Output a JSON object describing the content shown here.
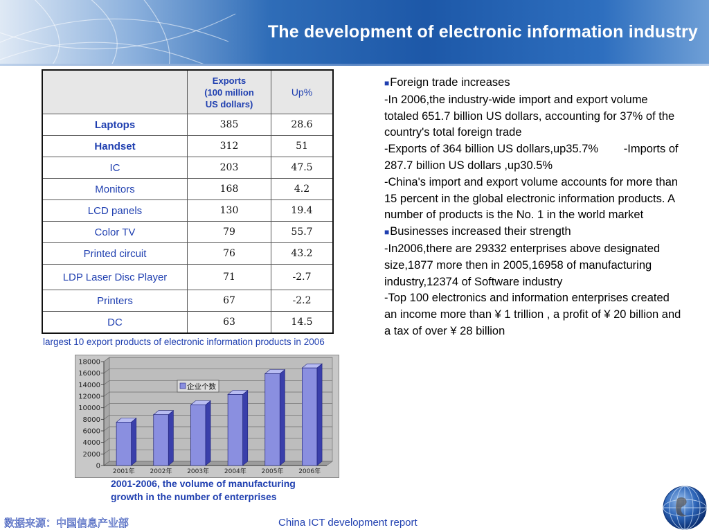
{
  "slide": {
    "title": "The development of electronic information industry"
  },
  "table": {
    "header_exports_lines": [
      "Exports",
      "(100 million",
      "US dollars)"
    ],
    "header_up": "Up%",
    "rows": [
      {
        "product": "Laptops",
        "exports": "385",
        "up": "28.6",
        "bold": true
      },
      {
        "product": "Handset",
        "exports": "312",
        "up": "51",
        "bold": true
      },
      {
        "product": "IC",
        "exports": "203",
        "up": "47.5",
        "bold": false
      },
      {
        "product": "Monitors",
        "exports": "168",
        "up": "4.2",
        "bold": false
      },
      {
        "product": "LCD panels",
        "exports": "130",
        "up": "19.4",
        "bold": false
      },
      {
        "product": "Color TV",
        "exports": "79",
        "up": "55.7",
        "bold": false
      },
      {
        "product": "Printed circuit",
        "exports": "76",
        "up": "43.2",
        "bold": false
      },
      {
        "product": "LDP Laser Disc Player",
        "exports": "71",
        "up": "-2.7",
        "bold": false
      },
      {
        "product": "Printers",
        "exports": "67",
        "up": "-2.2",
        "bold": false
      },
      {
        "product": "DC",
        "exports": "63",
        "up": "14.5",
        "bold": false
      }
    ],
    "caption": "largest 10 export products of electronic information products in 2006"
  },
  "text": {
    "heading1": "Foreign trade increases",
    "para1": "-In 2006,the industry-wide import and export volume totaled 651.7 billion US dollars, accounting for 37% of the country's total foreign trade",
    "para2": "-Exports of 364 billion US dollars,up35.7%        -Imports of 287.7 billion US dollars ,up30.5%",
    "para3": "-China's import and export volume accounts for more than 15 percent in the global electronic information products. A number of products is the No. 1 in the world market",
    "heading2": "Businesses increased their strength",
    "para4": "-In2006,there are 29332 enterprises above designated size,1877 more then in 2005,16958 of manufacturing industry,12374 of Software industry",
    "para5": "-Top 100 electronics and information enterprises created an income more than ¥ 1 trillion , a profit of ¥ 20 billion and a tax of over  ¥ 28 billion"
  },
  "chart_data": {
    "type": "bar",
    "categories": [
      "2001年",
      "2002年",
      "2003年",
      "2004年",
      "2005年",
      "2006年"
    ],
    "series": [
      {
        "name": "企业个数",
        "values": [
          7500,
          8800,
          10500,
          12300,
          15900,
          16900
        ],
        "color": "#8a8fe0"
      }
    ],
    "yticks": [
      "0",
      "2000",
      "4000",
      "6000",
      "8000",
      "10000",
      "12000",
      "14000",
      "16000",
      "18000"
    ],
    "ylim": [
      0,
      18000
    ],
    "grid": true,
    "legend": "top-center",
    "caption_lines": [
      "2001-2006, the volume of manufacturing",
      "growth in the number of enterprises"
    ]
  },
  "footer": {
    "source": "数据来源：中国信息产业部",
    "report": "China ICT development report"
  },
  "colors": {
    "accent_blue": "#1f3fb0",
    "header_blue": "#1d58a8",
    "bar_front": "#8a8fe0",
    "bar_side": "#3a3faa"
  }
}
